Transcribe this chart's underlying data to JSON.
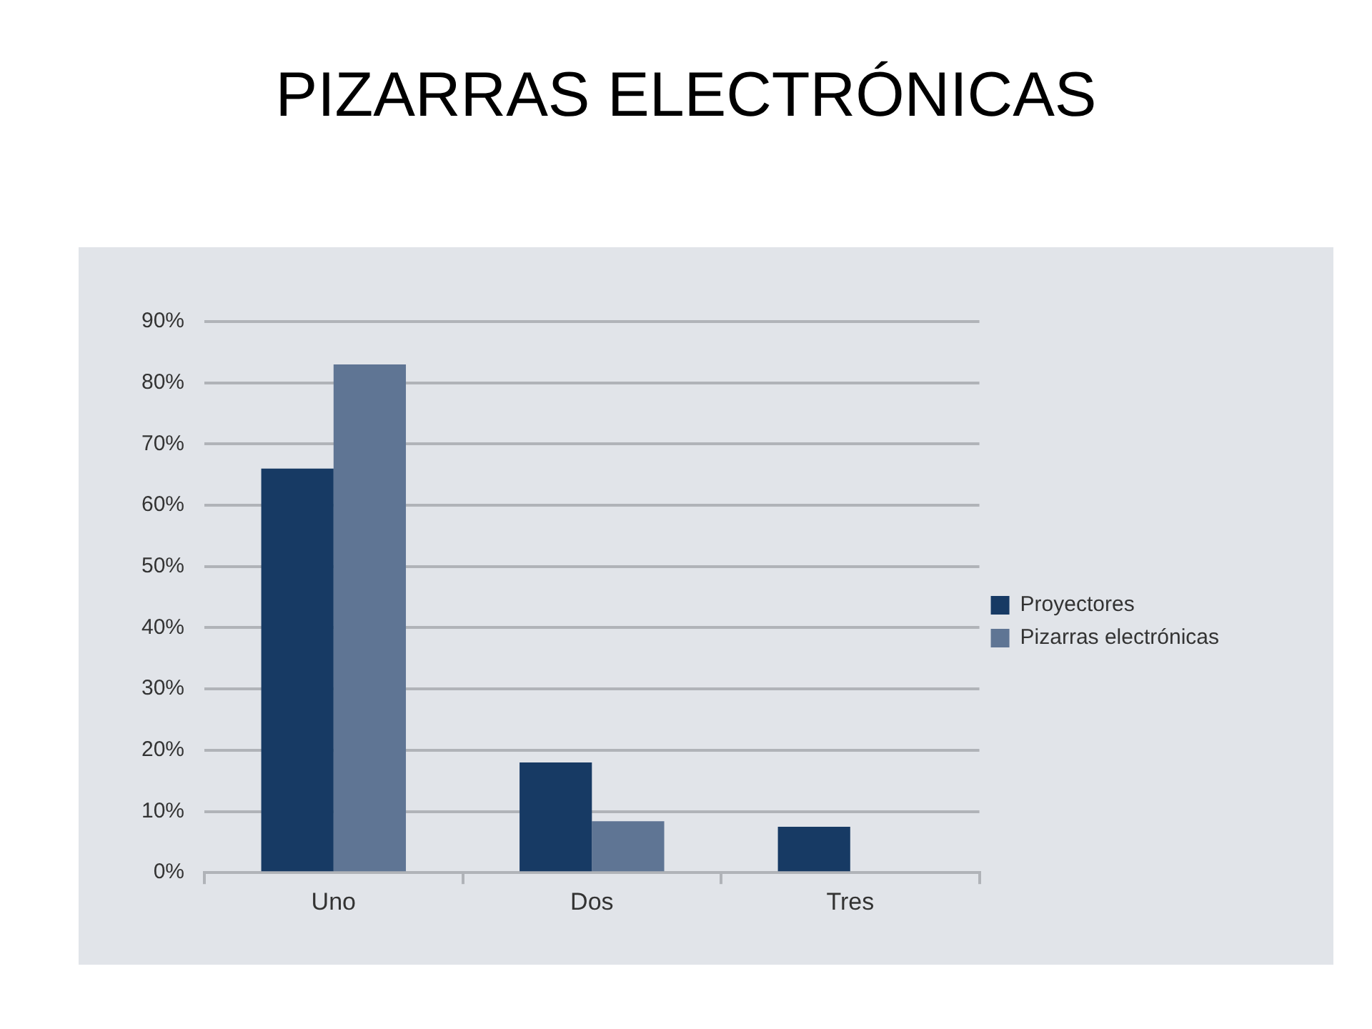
{
  "chart_data": {
    "type": "bar",
    "title": "PIZARRAS ELECTRÓNICAS",
    "categories": [
      "Uno",
      "Dos",
      "Tres"
    ],
    "series": [
      {
        "name": "Proyectores",
        "color": "#173a64",
        "values": [
          66,
          18,
          7.5
        ]
      },
      {
        "name": "Pizarras electrónicas",
        "color": "#5f7594",
        "values": [
          83,
          8.4,
          0
        ]
      }
    ],
    "ylim": [
      0,
      90
    ],
    "yticks": [
      {
        "value": 0,
        "label": "0%"
      },
      {
        "value": 10,
        "label": "10%"
      },
      {
        "value": 20,
        "label": "20%"
      },
      {
        "value": 30,
        "label": "30%"
      },
      {
        "value": 40,
        "label": "40%"
      },
      {
        "value": 50,
        "label": "50%"
      },
      {
        "value": 60,
        "label": "60%"
      },
      {
        "value": 70,
        "label": "70%"
      },
      {
        "value": 80,
        "label": "80%"
      },
      {
        "value": 90,
        "label": "90%"
      }
    ],
    "grid": "y",
    "legend": "right"
  }
}
